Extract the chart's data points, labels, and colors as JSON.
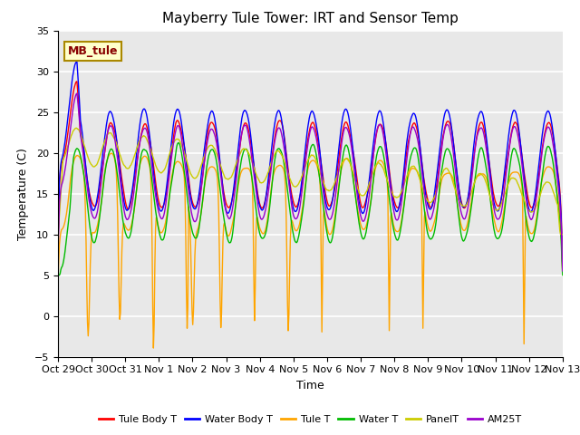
{
  "title": "Mayberry Tule Tower: IRT and Sensor Temp",
  "xlabel": "Time",
  "ylabel": "Temperature (C)",
  "ylim": [
    -5,
    35
  ],
  "n_days": 15,
  "x_tick_labels": [
    "Oct 29",
    "Oct 30",
    "Oct 31",
    "Nov 1",
    "Nov 2",
    "Nov 3",
    "Nov 4",
    "Nov 5",
    "Nov 6",
    "Nov 7",
    "Nov 8",
    "Nov 9",
    "Nov 10",
    "Nov 11",
    "Nov 12",
    "Nov 13"
  ],
  "legend_labels": [
    "Tule Body T",
    "Water Body T",
    "Tule T",
    "Water T",
    "PanelT",
    "AM25T"
  ],
  "legend_colors": [
    "#ff0000",
    "#0000ff",
    "#ffa500",
    "#00bb00",
    "#cccc00",
    "#9900cc"
  ],
  "watermark_text": "MB_tule",
  "watermark_bg": "#ffffcc",
  "watermark_border": "#aa8800",
  "plot_bg_color": "#e8e8e8",
  "title_fontsize": 11,
  "axis_label_fontsize": 9,
  "tick_fontsize": 8,
  "line_width": 1.0
}
